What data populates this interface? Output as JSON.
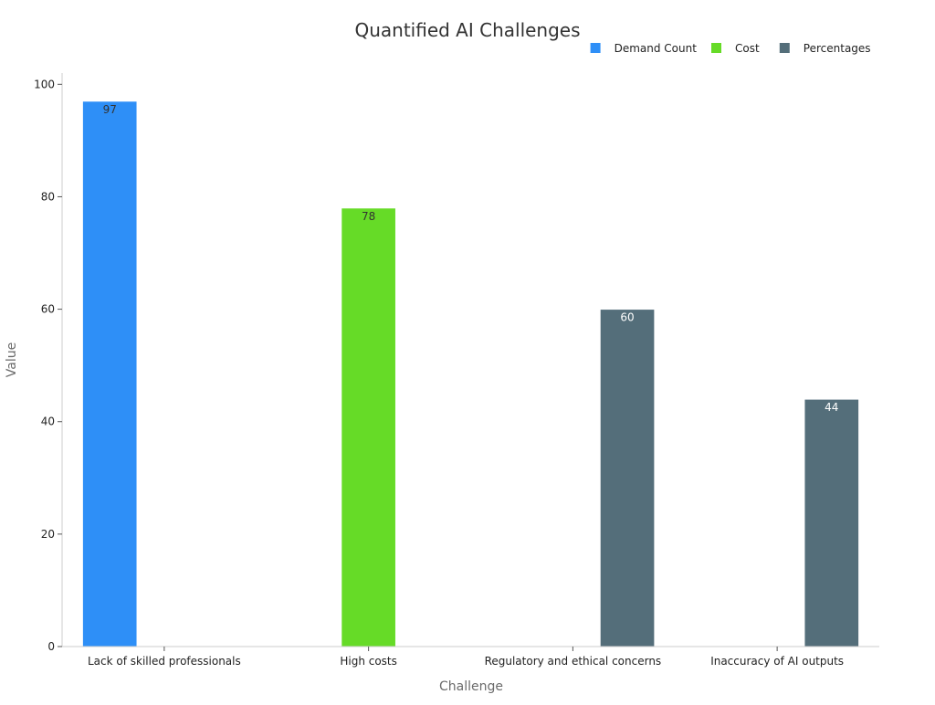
{
  "chart_data": {
    "type": "bar",
    "title": "Quantified AI Challenges",
    "xlabel": "Challenge",
    "ylabel": "Value",
    "categories": [
      "Lack of skilled professionals",
      "High costs",
      "Regulatory and ethical concerns",
      "Inaccuracy of AI outputs"
    ],
    "series": [
      {
        "name": "Demand Count",
        "color": "#2e8ff7",
        "label_color": "#333333",
        "values": [
          97,
          null,
          null,
          null
        ]
      },
      {
        "name": "Cost",
        "color": "#66db27",
        "label_color": "#333333",
        "values": [
          null,
          78,
          null,
          null
        ]
      },
      {
        "name": "Percentages",
        "color": "#546e7a",
        "label_color": "#ffffff",
        "values": [
          null,
          null,
          60,
          44
        ]
      }
    ],
    "ylim": [
      0,
      102
    ],
    "yticks": [
      0,
      20,
      40,
      60,
      80,
      100
    ],
    "grid": false,
    "legend": "top-right"
  }
}
